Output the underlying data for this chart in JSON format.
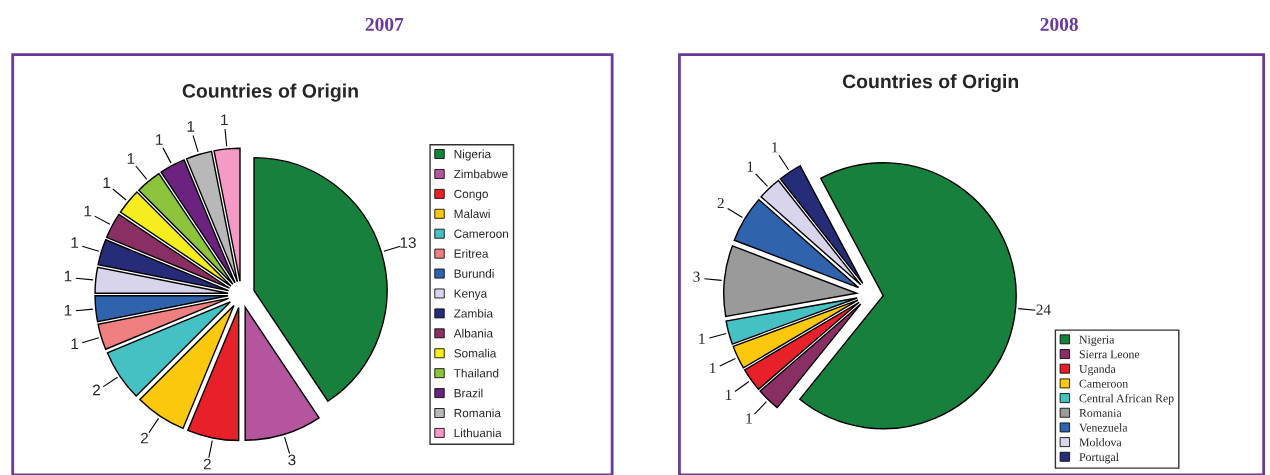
{
  "chart_data": [
    {
      "type": "pie",
      "title": "2007",
      "subtitle": "Countries of Origin",
      "categories": [
        "Nigeria",
        "Zimbabwe",
        "Congo",
        "Malawi",
        "Cameroon",
        "Eritrea",
        "Burundi",
        "Kenya",
        "Zambia",
        "Albania",
        "Somalia",
        "Thailand",
        "Brazil",
        "Romania",
        "Lithuania"
      ],
      "values": [
        13,
        3,
        2,
        2,
        2,
        1,
        1,
        1,
        1,
        1,
        1,
        1,
        1,
        1,
        1
      ],
      "colors": [
        "#16803c",
        "#b5559e",
        "#e8202a",
        "#fcc80e",
        "#45c1c4",
        "#f08080",
        "#2f63ad",
        "#d8d4ec",
        "#272c78",
        "#8a2f63",
        "#f4ec1c",
        "#8cc43c",
        "#6c2280",
        "#b8b8b8",
        "#f49ac4"
      ],
      "data_labels": true,
      "legend": "right"
    },
    {
      "type": "pie",
      "title": "2008",
      "subtitle": "Countries of Origin",
      "categories": [
        "Nigeria",
        "Sierra Leone",
        "Uganda",
        "Cameroon",
        "Central African Rep",
        "Romania",
        "Venezuela",
        "Moldova",
        "Portugal"
      ],
      "values": [
        24,
        1,
        1,
        1,
        1,
        3,
        2,
        1,
        1
      ],
      "colors": [
        "#16803c",
        "#8a2f63",
        "#e8202a",
        "#fcc80e",
        "#45c1c4",
        "#9a9a9a",
        "#2f63ad",
        "#d8d4ec",
        "#272c78"
      ],
      "data_labels": true,
      "legend": "bottom right"
    }
  ]
}
